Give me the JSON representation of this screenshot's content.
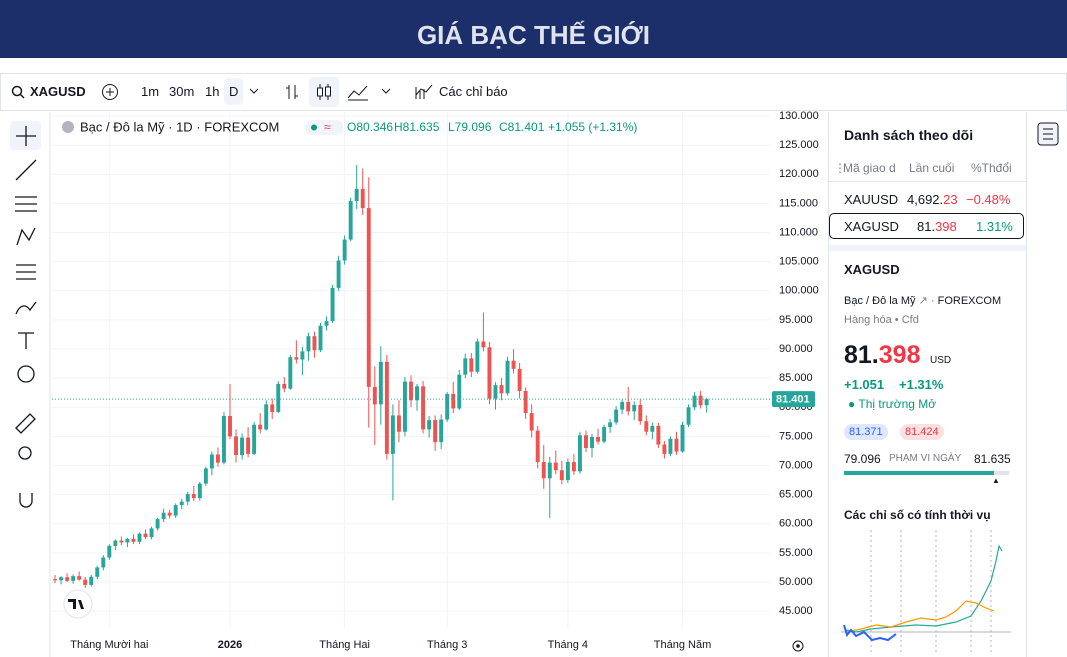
{
  "header": {
    "title": "GIÁ BẠC THẾ GIỚI"
  },
  "toolbar": {
    "symbol": "XAGUSD",
    "intervals": [
      "1m",
      "30m",
      "1h",
      "D"
    ],
    "indicators": "Các chỉ báo"
  },
  "chart_data": {
    "type": "candlestick",
    "title": "Bạc / Đô la Mỹ · 1D · FOREXCOM",
    "ohlc_labels": [
      "O80.346",
      "H81.635",
      "L79.096",
      "C81.401"
    ],
    "change_label": "+1.055 (+1.31%)",
    "up_color": "#26a69a",
    "down_color": "#ef5350",
    "grid": true,
    "xlim": [
      -0.5,
      118.5
    ],
    "xticks": [
      {
        "value": 9,
        "label": "Tháng Mười hai"
      },
      {
        "value": 29,
        "label": "2026"
      },
      {
        "value": 48,
        "label": "Tháng Hai"
      },
      {
        "value": 65,
        "label": "Tháng 3"
      },
      {
        "value": 85,
        "label": "Tháng 4"
      },
      {
        "value": 104,
        "label": "Tháng Năm"
      }
    ],
    "ylim": [
      42.1,
      130.7
    ],
    "yticks": [
      {
        "value": 45,
        "label": "45.000"
      },
      {
        "value": 50,
        "label": "50.000"
      },
      {
        "value": 55,
        "label": "55.000"
      },
      {
        "value": 60,
        "label": "60.000"
      },
      {
        "value": 65,
        "label": "65.000"
      },
      {
        "value": 70,
        "label": "70.000"
      },
      {
        "value": 75,
        "label": "75.000"
      },
      {
        "value": 80,
        "label": "80.000"
      },
      {
        "value": 85,
        "label": "85.000"
      },
      {
        "value": 90,
        "label": "90.000"
      },
      {
        "value": 95,
        "label": "95.000"
      },
      {
        "value": 100,
        "label": "100.000"
      },
      {
        "value": 105,
        "label": "105.000"
      },
      {
        "value": 110,
        "label": "110.000"
      },
      {
        "value": 115,
        "label": "115.000"
      },
      {
        "value": 120,
        "label": "120.000"
      },
      {
        "value": 125,
        "label": "125.000"
      },
      {
        "value": 130,
        "label": "130.000"
      }
    ],
    "last_price": {
      "value": 81.401,
      "label": "81.401"
    },
    "ohlc": [
      [
        50.5,
        51.2,
        49.8,
        50.3
      ],
      [
        50.3,
        51,
        49.6,
        50.8
      ],
      [
        50.8,
        51.5,
        50,
        50.2
      ],
      [
        50.2,
        51.3,
        49.7,
        51
      ],
      [
        51,
        51.8,
        50.2,
        50.4
      ],
      [
        50.4,
        50.9,
        49,
        49.5
      ],
      [
        49.5,
        51.2,
        49.2,
        50.9
      ],
      [
        50.9,
        52.8,
        50.5,
        52.5
      ],
      [
        52.5,
        54.6,
        52,
        54.2
      ],
      [
        54.2,
        56.5,
        53.8,
        56.2
      ],
      [
        56.2,
        57.3,
        55.5,
        57.1
      ],
      [
        57.1,
        57.8,
        56.3,
        56.8
      ],
      [
        56.8,
        57.6,
        56,
        57.4
      ],
      [
        57.4,
        58.2,
        56.5,
        56.9
      ],
      [
        56.9,
        58.5,
        56.5,
        58.3
      ],
      [
        58.3,
        59,
        57.4,
        57.7
      ],
      [
        57.7,
        59.5,
        57.3,
        59.2
      ],
      [
        59.2,
        61,
        58.8,
        60.8
      ],
      [
        60.8,
        62.6,
        60.3,
        61.9
      ],
      [
        61.9,
        62.4,
        60.9,
        61.4
      ],
      [
        61.4,
        63.5,
        61,
        63.2
      ],
      [
        63.2,
        64.3,
        62.5,
        63.8
      ],
      [
        63.8,
        65.5,
        63.2,
        65.1
      ],
      [
        65.1,
        66.5,
        63.9,
        64.4
      ],
      [
        64.4,
        67.2,
        64,
        66.9
      ],
      [
        66.9,
        69.8,
        66.5,
        69.5
      ],
      [
        69.5,
        72.4,
        68.3,
        71.9
      ],
      [
        71.9,
        73.1,
        69.8,
        70.5
      ],
      [
        70.5,
        79.2,
        70.2,
        78.5
      ],
      [
        78.5,
        84,
        74.5,
        75
      ],
      [
        75,
        76.2,
        70.5,
        71.8
      ],
      [
        71.8,
        75.5,
        71,
        74.8
      ],
      [
        74.8,
        76.6,
        71.4,
        72
      ],
      [
        72,
        77.5,
        71.8,
        77
      ],
      [
        77,
        79,
        75.5,
        76.2
      ],
      [
        76.2,
        81.2,
        76,
        80.5
      ],
      [
        80.5,
        81.5,
        78,
        79.2
      ],
      [
        79.2,
        84.5,
        79,
        84
      ],
      [
        84,
        85.2,
        82.6,
        83.2
      ],
      [
        83.2,
        89,
        83,
        88.6
      ],
      [
        88.6,
        91.5,
        87.5,
        88.2
      ],
      [
        88.2,
        90.4,
        85.5,
        89.6
      ],
      [
        89.6,
        92.8,
        88,
        92.2
      ],
      [
        92.2,
        93,
        88.5,
        89.8
      ],
      [
        89.8,
        94.5,
        89.5,
        94
      ],
      [
        94,
        95.6,
        93.2,
        94.8
      ],
      [
        94.8,
        101,
        94.5,
        100.5
      ],
      [
        100.5,
        106,
        100,
        105.2
      ],
      [
        105.2,
        109.5,
        104.5,
        108.8
      ],
      [
        108.8,
        116,
        108.5,
        115.4
      ],
      [
        115.4,
        121.6,
        114,
        117.5
      ],
      [
        117.5,
        121,
        113,
        114.2
      ],
      [
        114.2,
        119.5,
        76.5,
        83.5
      ],
      [
        83.5,
        87,
        73.5,
        80.5
      ],
      [
        80.5,
        90.5,
        77,
        87.8
      ],
      [
        87.8,
        89,
        71,
        72
      ],
      [
        72,
        80.5,
        64,
        78.6
      ],
      [
        78.6,
        81.2,
        74,
        75.8
      ],
      [
        75.8,
        85.2,
        75,
        84.4
      ],
      [
        84.4,
        85.5,
        80,
        81.2
      ],
      [
        81.2,
        84,
        79.4,
        83.6
      ],
      [
        83.6,
        84.5,
        75.5,
        76.2
      ],
      [
        76.2,
        78.5,
        74.8,
        77.8
      ],
      [
        77.8,
        78.6,
        72.5,
        74
      ],
      [
        74,
        78.8,
        72.8,
        77.9
      ],
      [
        77.9,
        82.6,
        77.5,
        82.3
      ],
      [
        82.3,
        84.4,
        79,
        79.8
      ],
      [
        79.8,
        86.4,
        79.5,
        85.6
      ],
      [
        85.6,
        89.2,
        85,
        88.4
      ],
      [
        88.4,
        89.3,
        85.2,
        86.1
      ],
      [
        86.1,
        91.8,
        85.8,
        91.3
      ],
      [
        91.3,
        96.3,
        89.6,
        90.3
      ],
      [
        90.3,
        91.2,
        80.5,
        81.5
      ],
      [
        81.5,
        84.3,
        79.6,
        83.8
      ],
      [
        83.8,
        85,
        81.2,
        82.4
      ],
      [
        82.4,
        88.7,
        82,
        88
      ],
      [
        88,
        90,
        85.8,
        86.6
      ],
      [
        86.6,
        87.6,
        81.5,
        82.8
      ],
      [
        82.8,
        83.4,
        78,
        79
      ],
      [
        79,
        80.5,
        74.8,
        76
      ],
      [
        76,
        76.8,
        69.5,
        70.6
      ],
      [
        70.6,
        73.5,
        66,
        67.8
      ],
      [
        67.8,
        71.5,
        61,
        70.5
      ],
      [
        70.5,
        72.6,
        68.5,
        69.2
      ],
      [
        69.2,
        70.8,
        66.8,
        67.5
      ],
      [
        67.5,
        71.2,
        67,
        70.6
      ],
      [
        70.6,
        72,
        68.4,
        69
      ],
      [
        69,
        75.8,
        68.6,
        75.2
      ],
      [
        75.2,
        76,
        72.3,
        73
      ],
      [
        73,
        75.4,
        71.4,
        74.9
      ],
      [
        74.9,
        76.3,
        73.6,
        74.1
      ],
      [
        74.1,
        77,
        73.8,
        76.6
      ],
      [
        76.6,
        78,
        75.6,
        77.4
      ],
      [
        77.4,
        80.2,
        77,
        79.6
      ],
      [
        79.6,
        81.3,
        78.8,
        80.9
      ],
      [
        80.9,
        83.5,
        78.6,
        79.3
      ],
      [
        79.3,
        81,
        77.8,
        80.4
      ],
      [
        80.4,
        81.4,
        77,
        77.6
      ],
      [
        77.6,
        78.6,
        75.2,
        75.8
      ],
      [
        75.8,
        77.4,
        74.5,
        76.8
      ],
      [
        76.8,
        77.3,
        73,
        73.6
      ],
      [
        73.6,
        74.2,
        71.2,
        72
      ],
      [
        72,
        75,
        71.6,
        74.6
      ],
      [
        74.6,
        75.8,
        71.8,
        72.4
      ],
      [
        72.4,
        77.5,
        72.2,
        77
      ],
      [
        77,
        80.5,
        76.6,
        80
      ],
      [
        80,
        82.6,
        79.5,
        82
      ],
      [
        82,
        82.8,
        79.8,
        80.346
      ],
      [
        80.346,
        81.635,
        79.096,
        81.401
      ]
    ]
  },
  "watchlist": {
    "title": "Danh sách theo dõi",
    "columns": [
      "Mã giao d",
      "Lần cuối",
      "%Thđổi"
    ],
    "rows": [
      {
        "symbol": "XAUUSD",
        "last_main": "4,692.",
        "last_tail": "23",
        "change": "−0.48%"
      },
      {
        "symbol": "XAGUSD",
        "last_main": "81.",
        "last_tail": "398",
        "change": "1.31%"
      }
    ]
  },
  "details": {
    "symbol": "XAGUSD",
    "description": "Bạc / Đô la Mỹ",
    "exchange": "FOREXCOM",
    "category": "Hàng hóa",
    "kind": "Cfd",
    "price_main": "81.",
    "price_tail": "398",
    "currency": "USD",
    "change": "+1.051",
    "change_pct": "+1.31%",
    "status": "Thị trường Mở",
    "bid": "81.371",
    "ask": "81.424",
    "range_low": "79.096",
    "range_label": "PHẠM VI NGÀY",
    "range_high": "81.635",
    "seasonal_title": "Các chỉ số có tính thời vụ"
  }
}
